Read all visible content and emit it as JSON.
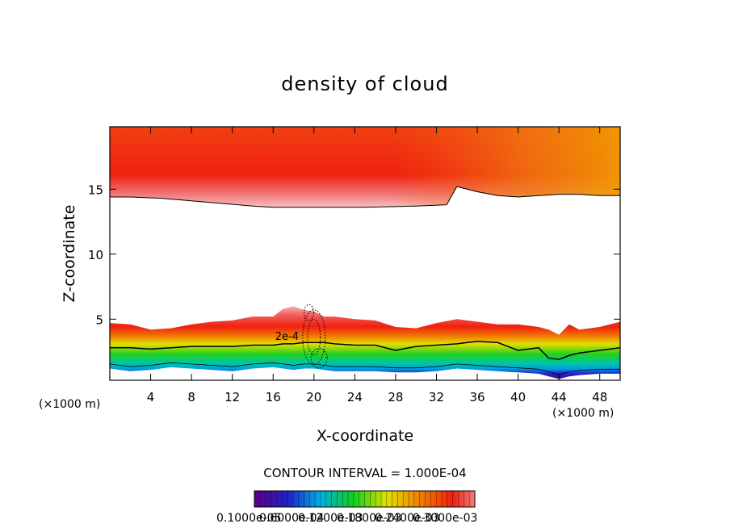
{
  "chart_data": {
    "type": "heatmap",
    "title": "density of cloud",
    "xlabel": "X-coordinate",
    "ylabel": "Z-coordinate",
    "x_unit_left": "(×1000 m)",
    "x_unit_right": "(×1000 m)",
    "xlim": [
      0,
      50
    ],
    "ylim": [
      0.3,
      19.8
    ],
    "x_ticks": [
      4,
      8,
      12,
      16,
      20,
      24,
      28,
      32,
      36,
      40,
      44,
      48
    ],
    "y_ticks": [
      5,
      10,
      15
    ],
    "contour_interval_text": "CONTOUR INTERVAL = 1.000E-04",
    "contour_label": "2e-4",
    "colorbar_labels": "0.1000e-05",
    "colorbar_labels_overlapped": [
      "0.6000e-04",
      "0.1200e-03",
      "0.1800e-03",
      "0.2400e-03",
      "0.3000e-03"
    ],
    "colorbar_range": [
      1e-06,
      0.0003
    ],
    "colors": {
      "low": "#5a0080",
      "blue": "#2020d0",
      "cyan": "#00b0e0",
      "green": "#10d020",
      "yellow": "#e0e000",
      "orange": "#f08000",
      "red": "#f02010",
      "pink": "#f08080",
      "light_pink": "#f8c0c0"
    },
    "upper_layer": {
      "bottom_z": [
        14.4,
        14.4,
        14.3,
        14.1,
        13.9,
        13.7,
        13.6,
        13.6,
        13.6,
        13.7,
        13.8,
        15.2,
        14.8,
        14.5,
        14.4,
        14.5,
        14.6,
        14.6,
        14.5,
        14.5
      ],
      "x": [
        0,
        2,
        5,
        8,
        11,
        14,
        16,
        20,
        25,
        30,
        33,
        34,
        36,
        38,
        40,
        42,
        44,
        46,
        48,
        50
      ]
    },
    "lower_layer": {
      "x": [
        0,
        2,
        4,
        6,
        8,
        10,
        12,
        14,
        16,
        17,
        18,
        19,
        20,
        21,
        22,
        24,
        26,
        28,
        30,
        32,
        34,
        36,
        38,
        40,
        42,
        43,
        44,
        45,
        46,
        48,
        50
      ],
      "top_z": [
        4.7,
        4.6,
        4.2,
        4.3,
        4.6,
        4.8,
        4.9,
        5.2,
        5.2,
        5.8,
        6.0,
        5.7,
        5.6,
        5.2,
        5.2,
        5.0,
        4.9,
        4.4,
        4.3,
        4.7,
        5.0,
        4.8,
        4.6,
        4.6,
        4.4,
        4.2,
        3.8,
        4.6,
        4.2,
        4.4,
        4.8
      ],
      "contour_2e4_z": [
        2.8,
        2.8,
        2.7,
        2.8,
        2.9,
        2.9,
        2.9,
        3.0,
        3.0,
        3.1,
        3.1,
        3.2,
        3.2,
        3.2,
        3.1,
        3.0,
        3.0,
        2.6,
        2.9,
        3.0,
        3.1,
        3.3,
        3.2,
        2.6,
        2.8,
        2.0,
        1.9,
        2.2,
        2.4,
        2.6,
        2.8
      ],
      "bottom_z": [
        1.2,
        1.0,
        1.1,
        1.3,
        1.2,
        1.1,
        1.0,
        1.2,
        1.3,
        1.2,
        1.1,
        1.2,
        1.2,
        1.1,
        1.0,
        1.0,
        1.0,
        0.9,
        0.9,
        1.0,
        1.2,
        1.1,
        1.0,
        0.9,
        0.8,
        0.6,
        0.4,
        0.6,
        0.7,
        0.8,
        0.8
      ]
    }
  }
}
